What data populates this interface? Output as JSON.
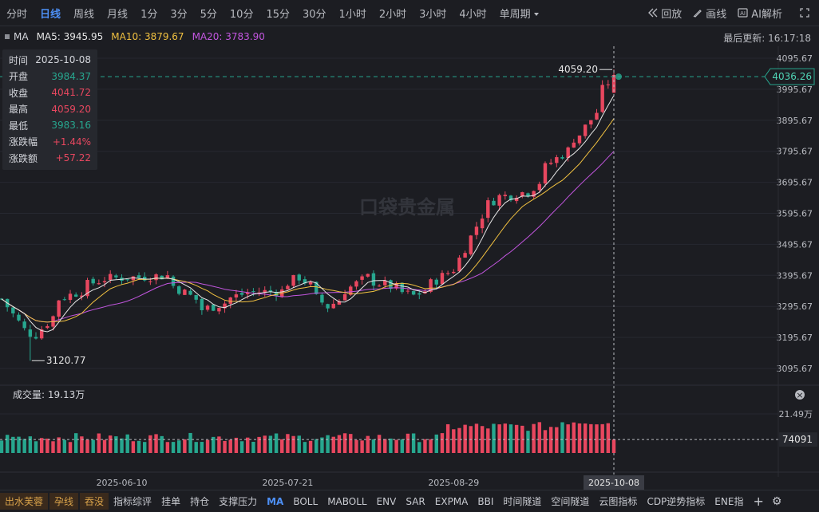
{
  "tabs": [
    "分时",
    "日线",
    "周线",
    "月线",
    "1分",
    "3分",
    "5分",
    "10分",
    "15分",
    "30分",
    "1小时",
    "2小时",
    "3小时",
    "4小时",
    "单周期"
  ],
  "tools": {
    "replay": "回放",
    "draw": "画线",
    "ai": "AI解析"
  },
  "ma": {
    "label": "MA",
    "ma5": "MA5: 3945.95",
    "ma10": "MA10: 3879.67",
    "ma20": "MA20: 3783.90"
  },
  "last_update": "最后更新: 16:17:18",
  "info": {
    "time_k": "时间",
    "time_v": "2025-10-08",
    "open_k": "开盘",
    "open_v": "3984.37",
    "close_k": "收盘",
    "close_v": "4041.72",
    "high_k": "最高",
    "high_v": "4059.20",
    "low_k": "最低",
    "low_v": "3983.16",
    "chgp_k": "涨跌幅",
    "chgp_v": "+1.44%",
    "chg_k": "涨跌额",
    "chg_v": "+57.22"
  },
  "chart": {
    "watermark": "口袋贵金属",
    "price_ticks": [
      "4095.67",
      "3995.67",
      "3895.67",
      "3795.67",
      "3695.67",
      "3595.67",
      "3495.67",
      "3395.67",
      "3295.67",
      "3195.67",
      "3095.67"
    ],
    "price_tick_values": [
      4095.67,
      3995.67,
      3895.67,
      3795.67,
      3695.67,
      3595.67,
      3495.67,
      3395.67,
      3295.67,
      3195.67,
      3095.67
    ],
    "current_price": "4036.26",
    "current_price_value": 4036.26,
    "high_label": "4059.20",
    "low_label": "3120.77",
    "volume_label": "成交量: 19.13万",
    "volume_max_label": "21.49万",
    "volume_cursor_label": "74091",
    "date_ticks": [
      "2025-06-10",
      "2025-07-21",
      "2025-08-29"
    ],
    "cursor_date": "2025-10-08"
  },
  "colors": {
    "up": "#e8475f",
    "down": "#27a78f",
    "ma5": "#e6e6e6",
    "ma10": "#f0c040",
    "ma20": "#c356e0",
    "accent": "#4d8ff5"
  },
  "chart_data": {
    "type": "candlestick",
    "title": "",
    "ylim": [
      3050,
      4110
    ],
    "x_range": [
      "2025-05-12",
      "2025-10-08"
    ],
    "keypoints": [
      {
        "date": "2025-05-12",
        "price": 3320
      },
      {
        "date": "2025-05-16",
        "price": 3220
      },
      {
        "date": "2025-05-20",
        "price": 3205
      },
      {
        "date": "2025-05-26",
        "price": 3320
      },
      {
        "date": "2025-06-05",
        "price": 3385
      },
      {
        "date": "2025-06-13",
        "price": 3390
      },
      {
        "date": "2025-06-20",
        "price": 3395
      },
      {
        "date": "2025-06-30",
        "price": 3285
      },
      {
        "date": "2025-07-10",
        "price": 3340
      },
      {
        "date": "2025-07-18",
        "price": 3345
      },
      {
        "date": "2025-07-23",
        "price": 3390
      },
      {
        "date": "2025-07-30",
        "price": 3295
      },
      {
        "date": "2025-08-08",
        "price": 3390
      },
      {
        "date": "2025-08-20",
        "price": 3330
      },
      {
        "date": "2025-08-25",
        "price": 3370
      },
      {
        "date": "2025-09-01",
        "price": 3450
      },
      {
        "date": "2025-09-05",
        "price": 3590
      },
      {
        "date": "2025-09-10",
        "price": 3650
      },
      {
        "date": "2025-09-17",
        "price": 3665
      },
      {
        "date": "2025-09-23",
        "price": 3760
      },
      {
        "date": "2025-09-30",
        "price": 3850
      },
      {
        "date": "2025-10-08",
        "price": 4041.72
      }
    ],
    "last_candle": {
      "date": "2025-10-08",
      "open": 3984.37,
      "close": 4041.72,
      "high": 4059.2,
      "low": 3983.16
    },
    "lowest": {
      "value": 3120.77
    },
    "volume_max": 214900,
    "volume_last": 74091
  },
  "bottom": [
    "出水芙蓉",
    "孕线",
    "吞没",
    "指标综评",
    "挂单",
    "持仓",
    "支撑压力",
    "MA",
    "BOLL",
    "MABOLL",
    "ENV",
    "SAR",
    "EXPMA",
    "BBI",
    "时间隧道",
    "空间隧道",
    "云图指标",
    "CDP逆势指标",
    "ENE指"
  ]
}
